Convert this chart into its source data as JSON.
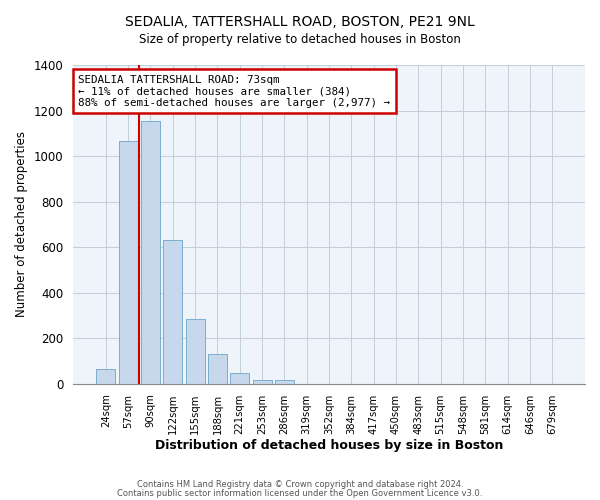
{
  "title": "SEDALIA, TATTERSHALL ROAD, BOSTON, PE21 9NL",
  "subtitle": "Size of property relative to detached houses in Boston",
  "xlabel": "Distribution of detached houses by size in Boston",
  "ylabel": "Number of detached properties",
  "bar_labels": [
    "24sqm",
    "57sqm",
    "90sqm",
    "122sqm",
    "155sqm",
    "188sqm",
    "221sqm",
    "253sqm",
    "286sqm",
    "319sqm",
    "352sqm",
    "384sqm",
    "417sqm",
    "450sqm",
    "483sqm",
    "515sqm",
    "548sqm",
    "581sqm",
    "614sqm",
    "646sqm",
    "679sqm"
  ],
  "bar_values": [
    65,
    1065,
    1155,
    630,
    285,
    130,
    47,
    18,
    18,
    0,
    0,
    0,
    0,
    0,
    0,
    0,
    0,
    0,
    0,
    0,
    0
  ],
  "bar_color": "#c8d8ec",
  "bar_edge_color": "#7aadcc",
  "annotation_title": "SEDALIA TATTERSHALL ROAD: 73sqm",
  "annotation_line1": "← 11% of detached houses are smaller (384)",
  "annotation_line2": "88% of semi-detached houses are larger (2,977) →",
  "annotation_box_color": "#ffffff",
  "annotation_box_edge": "#cc0000",
  "marker_line_color": "#cc0000",
  "ylim": [
    0,
    1400
  ],
  "yticks": [
    0,
    200,
    400,
    600,
    800,
    1000,
    1200,
    1400
  ],
  "footer1": "Contains HM Land Registry data © Crown copyright and database right 2024.",
  "footer2": "Contains public sector information licensed under the Open Government Licence v3.0.",
  "background_color": "#ffffff",
  "plot_bg_color": "#eef4fa",
  "grid_color": "#c0cfd8"
}
